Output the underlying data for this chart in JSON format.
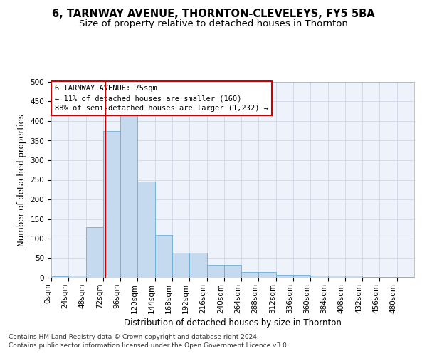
{
  "title": "6, TARNWAY AVENUE, THORNTON-CLEVELEYS, FY5 5BA",
  "subtitle": "Size of property relative to detached houses in Thornton",
  "xlabel": "Distribution of detached houses by size in Thornton",
  "ylabel": "Number of detached properties",
  "footer_line1": "Contains HM Land Registry data © Crown copyright and database right 2024.",
  "footer_line2": "Contains public sector information licensed under the Open Government Licence v3.0.",
  "annotation_line1": "6 TARNWAY AVENUE: 75sqm",
  "annotation_line2": "← 11% of detached houses are smaller (160)",
  "annotation_line3": "88% of semi-detached houses are larger (1,232) →",
  "bar_values": [
    4,
    6,
    130,
    375,
    415,
    245,
    110,
    63,
    63,
    32,
    32,
    15,
    15,
    8,
    8,
    5,
    5,
    5,
    2,
    2,
    2
  ],
  "bin_edges": [
    0,
    24,
    48,
    72,
    96,
    120,
    144,
    168,
    192,
    216,
    240,
    264,
    288,
    312,
    336,
    360,
    384,
    408,
    432,
    456,
    480
  ],
  "tick_labels": [
    "0sqm",
    "24sqm",
    "48sqm",
    "72sqm",
    "96sqm",
    "120sqm",
    "144sqm",
    "168sqm",
    "192sqm",
    "216sqm",
    "240sqm",
    "264sqm",
    "288sqm",
    "312sqm",
    "336sqm",
    "360sqm",
    "384sqm",
    "408sqm",
    "432sqm",
    "456sqm",
    "480sqm"
  ],
  "bar_color": "#c5d9ef",
  "bar_edge_color": "#6aaed6",
  "vline_x": 75,
  "vline_color": "#cc0000",
  "ylim": [
    0,
    500
  ],
  "yticks": [
    0,
    50,
    100,
    150,
    200,
    250,
    300,
    350,
    400,
    450,
    500
  ],
  "grid_color": "#d0d8e8",
  "bg_color": "#eef2fa",
  "annotation_box_color": "#cc0000",
  "title_fontsize": 10.5,
  "subtitle_fontsize": 9.5,
  "axis_label_fontsize": 8.5,
  "tick_fontsize": 7.5,
  "footer_fontsize": 6.5
}
